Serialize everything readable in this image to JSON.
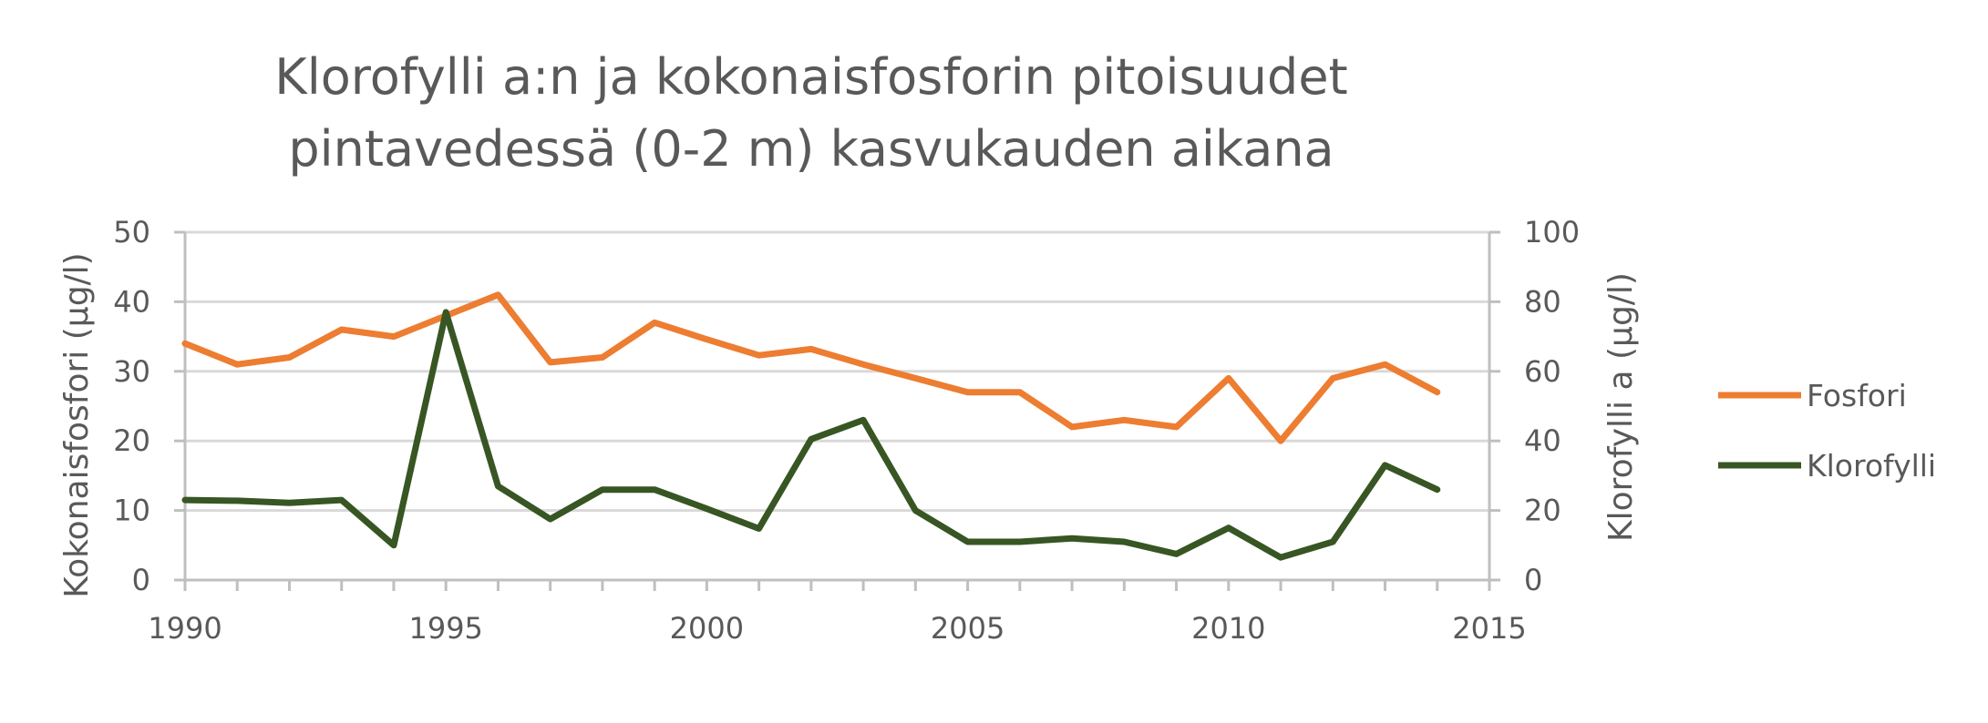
{
  "chart_data": {
    "type": "line",
    "title_lines": [
      "Klorofylli a:n ja kokonaisfosforin pitoisuudet",
      "pintavedessä (0-2 m) kasvukauden aikana"
    ],
    "xlabel": "",
    "ylabel_left": "Kokonaisfosfori (µg/l)",
    "ylabel_right": "Klorofylli a (µg/l)",
    "xlim": [
      1990,
      2015
    ],
    "ylim_left": [
      0,
      50
    ],
    "ylim_right": [
      0,
      100
    ],
    "x_ticks": [
      "1990",
      "1995",
      "2000",
      "2005",
      "2010",
      "2015"
    ],
    "y_ticks_left": [
      "0",
      "10",
      "20",
      "30",
      "40",
      "50"
    ],
    "y_ticks_right": [
      "0",
      "20",
      "40",
      "60",
      "80",
      "100"
    ],
    "grid": true,
    "legend_position": "right",
    "x": [
      1990,
      1991,
      1992,
      1993,
      1994,
      1995,
      1996,
      1997,
      1998,
      1999,
      2000,
      2001,
      2002,
      2003,
      2004,
      2005,
      2006,
      2007,
      2008,
      2009,
      2010,
      2011,
      2012,
      2013,
      2014
    ],
    "series": [
      {
        "name": "Fosfori",
        "axis": "left",
        "color": "#ED7D31",
        "values": [
          34,
          31,
          32,
          36,
          35,
          38,
          41,
          31.3,
          32,
          37,
          34.6,
          32.3,
          33.2,
          31,
          29,
          27,
          27,
          22,
          23,
          22,
          29,
          20,
          29,
          31,
          27
        ]
      },
      {
        "name": "Klorofylli",
        "axis": "right",
        "color": "#375623",
        "values": [
          23,
          22.8,
          22.2,
          23,
          10,
          77,
          27,
          17.5,
          26,
          26,
          20.5,
          14.8,
          40.5,
          46,
          20,
          11,
          11,
          12,
          11,
          7.5,
          15,
          6.5,
          11,
          33,
          26
        ]
      }
    ]
  }
}
